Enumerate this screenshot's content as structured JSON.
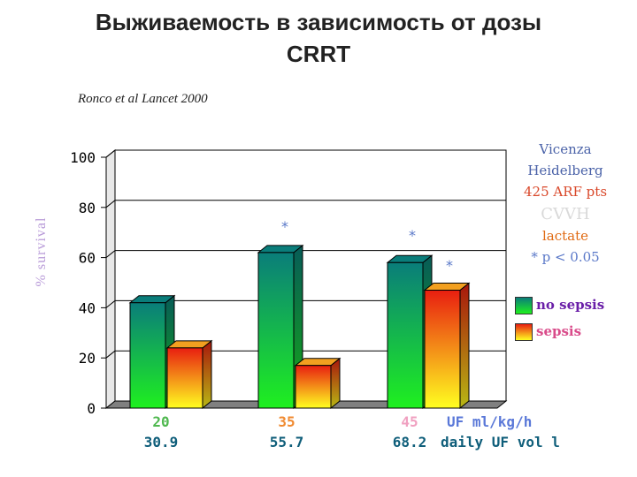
{
  "chart_data": {
    "type": "bar",
    "title": "Выживаемость в зависимость от дозы",
    "title_line2": "CRRT",
    "subtitle": "Ronco et al Lancet 2000",
    "ylabel": "% survival",
    "ylim": [
      0,
      100
    ],
    "yticks": [
      "0",
      "20",
      "40",
      "60",
      "80",
      "100"
    ],
    "grid": true,
    "categories": [
      "20",
      "35",
      "45"
    ],
    "categories_row2": [
      "30.9",
      "55.7",
      "68.2"
    ],
    "x_row1_label": "UF ml/kg/h",
    "x_row2_label": "daily UF vol l",
    "series": [
      {
        "name": "no sepsis",
        "values": [
          42,
          62,
          58
        ]
      },
      {
        "name": "sepsis",
        "values": [
          24,
          17,
          47
        ]
      }
    ],
    "significance_marker": "*",
    "legend_position": "right"
  },
  "annotations": {
    "line1": "Vicenza",
    "line2": "Heidelberg",
    "line3": "425 ARF pts",
    "line4": "CVVH",
    "line5": "lactate",
    "line6": "* p < 0.05"
  },
  "colors": {
    "nosepsis_top": "#0a7d7a",
    "nosepsis_bottom": "#1ff01f",
    "sepsis_top": "#e81e10",
    "sepsis_bottom": "#ffff20",
    "info_blue": "#4a62a8",
    "info_red": "#d9482a",
    "info_orange": "#e06a12",
    "info_gray": "#d9d9d9",
    "info_lightblue": "#5a78c8",
    "legend_nosepsis": "#6a1fa8",
    "legend_sepsis": "#d94b8a",
    "xrow1_green": "#4fb84f",
    "xrow1_orange": "#f08a30",
    "xrow1_pink": "#f0a0c0",
    "xrow1_label": "#5a78d8",
    "xrow2_teal": "#0f5e7a"
  }
}
